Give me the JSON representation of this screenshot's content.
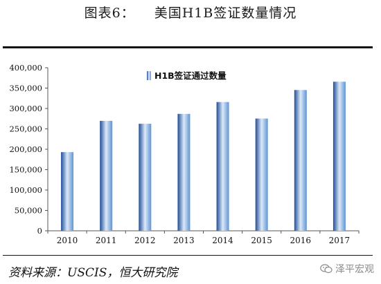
{
  "figure_title": {
    "label": "图表6：",
    "text": "美国H1B签证数量情况"
  },
  "source": "资料来源：USCIS，恒大研究院",
  "watermark": {
    "text": "泽平宏观",
    "icon": "wechat-icon"
  },
  "colors": {
    "bar_dark": "#1f4e99",
    "bar_mid": "#5f94d4",
    "bar_light": "#dce9f8"
  },
  "chart_data": {
    "type": "bar",
    "categories": [
      "2010",
      "2011",
      "2012",
      "2013",
      "2014",
      "2015",
      "2016",
      "2017"
    ],
    "series": [
      {
        "name": "H1B签证通过数量",
        "values": [
          192990,
          269653,
          262569,
          286773,
          315857,
          275317,
          345262,
          365682
        ]
      }
    ],
    "ylim": [
      0,
      400000
    ],
    "yticks": [
      "0",
      "50,000",
      "100,000",
      "150,000",
      "200,000",
      "250,000",
      "300,000",
      "350,000",
      "400,000"
    ],
    "ytick_values": [
      0,
      50000,
      100000,
      150000,
      200000,
      250000,
      300000,
      350000,
      400000
    ],
    "legend_position": "top-left",
    "grid": false
  }
}
